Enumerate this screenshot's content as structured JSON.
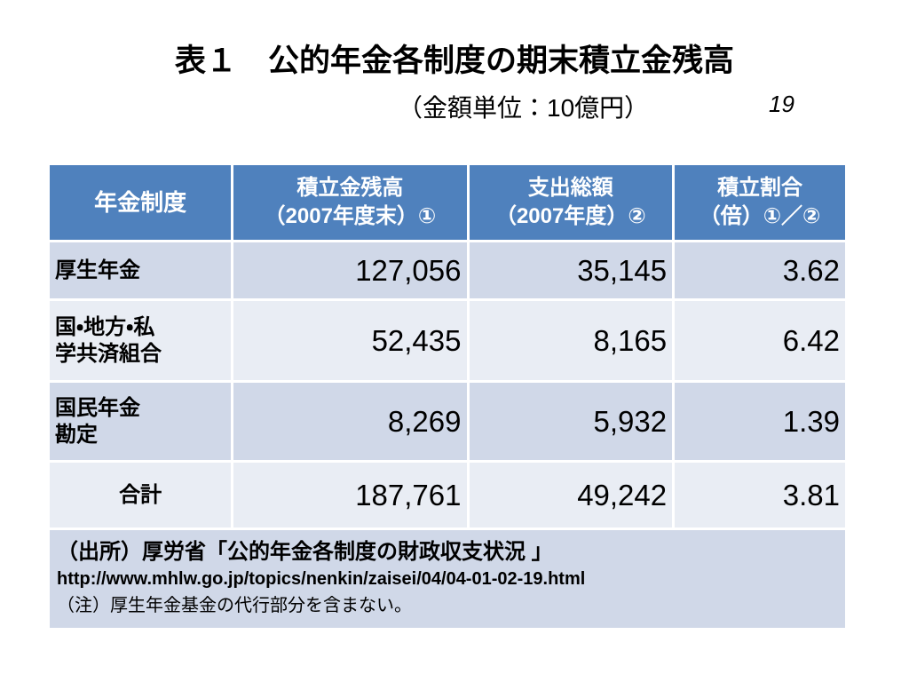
{
  "header": {
    "title": "表１　公的年金各制度の期末積立金残高",
    "unit": "（金額単位：10億円）",
    "page_number": "19"
  },
  "table": {
    "columns": [
      [
        "年金制度"
      ],
      [
        "積立金残高",
        "（2007年度末）①"
      ],
      [
        "支出総額",
        "（2007年度）②"
      ],
      [
        "積立割合",
        "（倍）①／②"
      ]
    ],
    "rows": [
      [
        [
          "厚生年金"
        ],
        "127,056",
        "35,145",
        "3.62"
      ],
      [
        [
          "国・地方・私",
          "学共済組合"
        ],
        "52,435",
        "8,165",
        "6.42"
      ],
      [
        [
          "国民年金",
          "勘定"
        ],
        "8,269",
        "5,932",
        "1.39"
      ],
      [
        [
          "合計"
        ],
        "187,761",
        "49,242",
        "3.81"
      ]
    ],
    "notes": [
      "（出所）厚労省「公的年金各制度の財政収支状況 」",
      "http://www.mhlw.go.jp/topics/nenkin/zaisei/04/04-01-02-19.html",
      "（注）厚生年金基金の代行部分を含まない。"
    ]
  }
}
